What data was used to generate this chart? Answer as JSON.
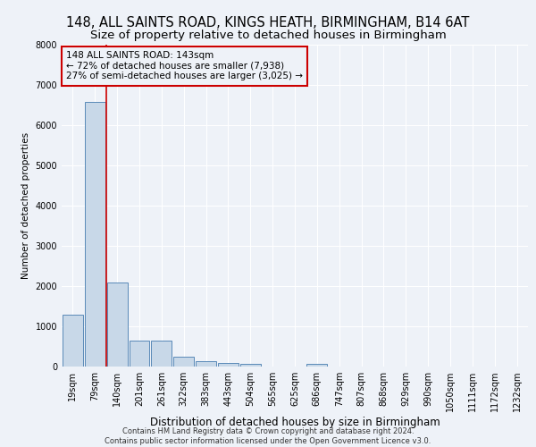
{
  "title1": "148, ALL SAINTS ROAD, KINGS HEATH, BIRMINGHAM, B14 6AT",
  "title2": "Size of property relative to detached houses in Birmingham",
  "xlabel": "Distribution of detached houses by size in Birmingham",
  "ylabel": "Number of detached properties",
  "footnote": "Contains HM Land Registry data © Crown copyright and database right 2024.\nContains public sector information licensed under the Open Government Licence v3.0.",
  "bin_labels": [
    "19sqm",
    "79sqm",
    "140sqm",
    "201sqm",
    "261sqm",
    "322sqm",
    "383sqm",
    "443sqm",
    "504sqm",
    "565sqm",
    "625sqm",
    "686sqm",
    "747sqm",
    "807sqm",
    "868sqm",
    "929sqm",
    "990sqm",
    "1050sqm",
    "1111sqm",
    "1172sqm",
    "1232sqm"
  ],
  "bar_heights": [
    1300,
    6580,
    2080,
    650,
    650,
    255,
    140,
    100,
    60,
    0,
    0,
    60,
    0,
    0,
    0,
    0,
    0,
    0,
    0,
    0,
    0
  ],
  "bar_color": "#c8d8e8",
  "bar_edge_color": "#5a8ab8",
  "highlight_line_color": "#cc0000",
  "highlight_line_bar_index": 2,
  "annotation_box_text": "148 ALL SAINTS ROAD: 143sqm\n← 72% of detached houses are smaller (7,938)\n27% of semi-detached houses are larger (3,025) →",
  "annotation_box_color": "#cc0000",
  "annotation_box_facecolor": "#eef2f8",
  "ylim": [
    0,
    8000
  ],
  "yticks": [
    0,
    1000,
    2000,
    3000,
    4000,
    5000,
    6000,
    7000,
    8000
  ],
  "bg_color": "#eef2f8",
  "grid_color": "#ffffff",
  "title1_fontsize": 10.5,
  "title2_fontsize": 9.5,
  "xlabel_fontsize": 8.5,
  "ylabel_fontsize": 7.5,
  "tick_fontsize": 7,
  "annot_fontsize": 7.5,
  "footnote_fontsize": 6
}
